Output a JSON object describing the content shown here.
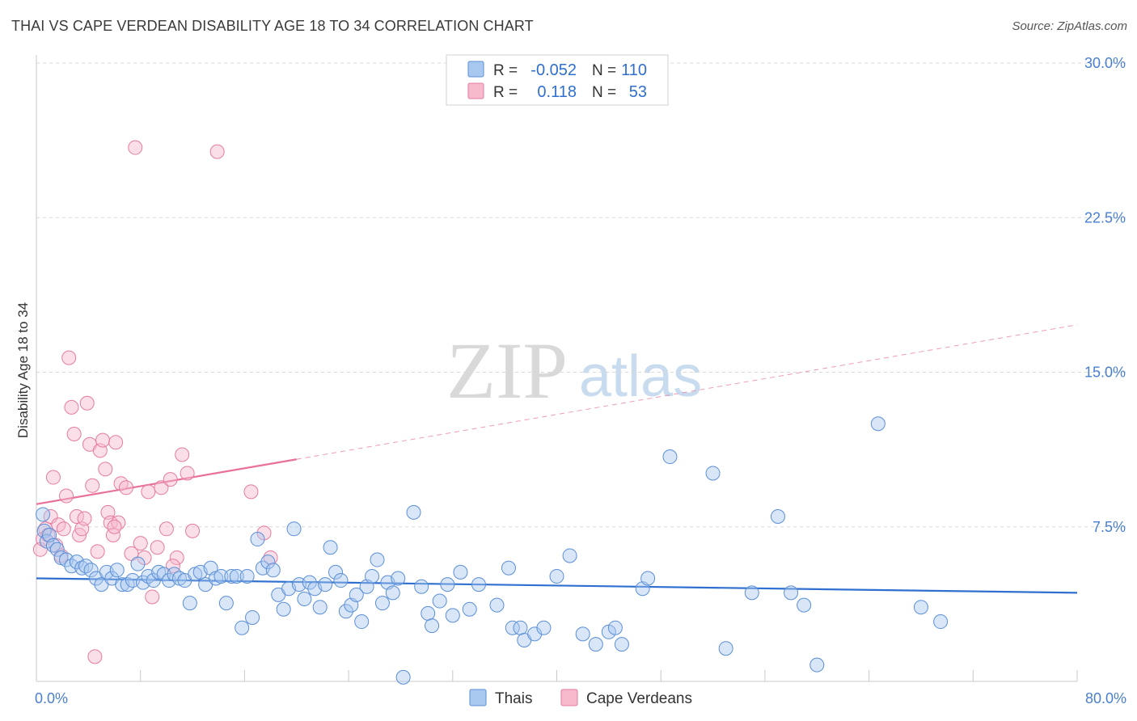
{
  "header": {
    "title": "THAI VS CAPE VERDEAN DISABILITY AGE 18 TO 34 CORRELATION CHART",
    "source": "Source: ZipAtlas.com"
  },
  "watermark": {
    "zip": "ZIP",
    "atlas": "atlas"
  },
  "colors": {
    "blue_fill": "#a9c8f0",
    "blue_stroke": "#5b8fd6",
    "blue_line": "#2f6fd0",
    "pink_fill": "#f7b9cc",
    "pink_stroke": "#e57c9f",
    "pink_line": "#e8709a",
    "grid": "#d8d8d8",
    "tick_text": "#4a7fd0"
  },
  "legend": {
    "rows": [
      {
        "r_label": "R =",
        "r_value": "-0.052",
        "n_label": "N =",
        "n_value": "110"
      },
      {
        "r_label": "R =",
        "r_value": "0.118",
        "n_label": "N =",
        "n_value": "53"
      }
    ]
  },
  "bottom_legend": {
    "items": [
      "Thais",
      "Cape Verdeans"
    ]
  },
  "chart_data": {
    "type": "scatter",
    "title": "THAI VS CAPE VERDEAN DISABILITY AGE 18 TO 34 CORRELATION CHART",
    "xlabel": "",
    "ylabel": "Disability Age 18 to 34",
    "xlim": [
      0,
      80
    ],
    "ylim": [
      0,
      30
    ],
    "x_tick_labels": [
      "0.0%",
      "80.0%"
    ],
    "y_ticks": [
      7.5,
      15.0,
      22.5,
      30.0
    ],
    "y_tick_labels": [
      "7.5%",
      "15.0%",
      "22.5%",
      "30.0%"
    ],
    "grid": true,
    "legend_position": "top-center",
    "series": [
      {
        "name": "Thais",
        "r": -0.052,
        "n": 110,
        "trend": {
          "x0": 0,
          "y0": 5.0,
          "x1": 80,
          "y1": 4.3,
          "dashed_from": null
        },
        "points": [
          [
            0.5,
            8.1
          ],
          [
            0.6,
            7.3
          ],
          [
            0.8,
            6.8
          ],
          [
            1.0,
            7.1
          ],
          [
            1.3,
            6.6
          ],
          [
            1.6,
            6.4
          ],
          [
            1.9,
            6.0
          ],
          [
            2.3,
            5.9
          ],
          [
            2.7,
            5.6
          ],
          [
            3.1,
            5.8
          ],
          [
            3.5,
            5.5
          ],
          [
            3.8,
            5.6
          ],
          [
            4.2,
            5.4
          ],
          [
            4.6,
            5.0
          ],
          [
            5.0,
            4.7
          ],
          [
            5.4,
            5.3
          ],
          [
            5.8,
            5.0
          ],
          [
            6.2,
            5.4
          ],
          [
            6.6,
            4.7
          ],
          [
            7.0,
            4.7
          ],
          [
            7.4,
            4.9
          ],
          [
            7.8,
            5.7
          ],
          [
            8.2,
            4.8
          ],
          [
            8.6,
            5.1
          ],
          [
            9.0,
            4.9
          ],
          [
            9.4,
            5.3
          ],
          [
            9.8,
            5.2
          ],
          [
            10.2,
            4.9
          ],
          [
            10.6,
            5.2
          ],
          [
            11.0,
            5.0
          ],
          [
            11.4,
            4.9
          ],
          [
            11.8,
            3.8
          ],
          [
            12.2,
            5.2
          ],
          [
            12.6,
            5.3
          ],
          [
            13.0,
            4.7
          ],
          [
            13.4,
            5.5
          ],
          [
            13.8,
            5.0
          ],
          [
            14.2,
            5.1
          ],
          [
            14.6,
            3.8
          ],
          [
            15.0,
            5.1
          ],
          [
            15.4,
            5.1
          ],
          [
            15.8,
            2.6
          ],
          [
            16.2,
            5.1
          ],
          [
            16.6,
            3.1
          ],
          [
            17.0,
            6.9
          ],
          [
            17.4,
            5.5
          ],
          [
            17.8,
            5.8
          ],
          [
            18.2,
            5.4
          ],
          [
            18.6,
            4.2
          ],
          [
            19.0,
            3.5
          ],
          [
            19.4,
            4.5
          ],
          [
            19.8,
            7.4
          ],
          [
            20.2,
            4.7
          ],
          [
            20.6,
            4.0
          ],
          [
            21.0,
            4.8
          ],
          [
            21.4,
            4.5
          ],
          [
            21.8,
            3.6
          ],
          [
            22.2,
            4.7
          ],
          [
            22.6,
            6.5
          ],
          [
            23.0,
            5.3
          ],
          [
            23.4,
            4.9
          ],
          [
            23.8,
            3.4
          ],
          [
            24.2,
            3.7
          ],
          [
            24.6,
            4.2
          ],
          [
            25.0,
            2.9
          ],
          [
            25.4,
            4.6
          ],
          [
            25.8,
            5.1
          ],
          [
            26.2,
            5.9
          ],
          [
            26.6,
            3.8
          ],
          [
            27.0,
            4.8
          ],
          [
            27.4,
            4.3
          ],
          [
            27.8,
            5.0
          ],
          [
            28.2,
            0.2
          ],
          [
            29.0,
            8.2
          ],
          [
            29.6,
            4.6
          ],
          [
            30.1,
            3.3
          ],
          [
            30.4,
            2.7
          ],
          [
            31.0,
            3.9
          ],
          [
            31.6,
            4.7
          ],
          [
            32.0,
            3.2
          ],
          [
            32.6,
            5.3
          ],
          [
            33.3,
            3.5
          ],
          [
            34.0,
            4.7
          ],
          [
            35.4,
            3.7
          ],
          [
            36.3,
            5.5
          ],
          [
            36.6,
            2.6
          ],
          [
            37.2,
            2.6
          ],
          [
            37.5,
            2.0
          ],
          [
            38.3,
            2.3
          ],
          [
            39.0,
            2.6
          ],
          [
            40.0,
            5.1
          ],
          [
            41.0,
            6.1
          ],
          [
            42.0,
            2.3
          ],
          [
            43.0,
            1.8
          ],
          [
            44.0,
            2.4
          ],
          [
            44.5,
            2.6
          ],
          [
            45.0,
            1.8
          ],
          [
            46.6,
            4.5
          ],
          [
            47.0,
            5.0
          ],
          [
            48.7,
            10.9
          ],
          [
            52.0,
            10.1
          ],
          [
            53.0,
            1.6
          ],
          [
            55.0,
            4.3
          ],
          [
            57.0,
            8.0
          ],
          [
            58.0,
            4.3
          ],
          [
            59.0,
            3.7
          ],
          [
            60.0,
            0.8
          ],
          [
            64.7,
            12.5
          ],
          [
            68.0,
            3.6
          ],
          [
            69.5,
            2.9
          ]
        ]
      },
      {
        "name": "Cape Verdeans",
        "r": 0.118,
        "n": 53,
        "trend": {
          "x0": 0,
          "y0": 8.6,
          "x1": 80,
          "y1": 17.3,
          "dashed_from": 20
        },
        "points": [
          [
            0.3,
            6.4
          ],
          [
            0.5,
            6.9
          ],
          [
            0.7,
            7.4
          ],
          [
            0.9,
            7.1
          ],
          [
            1.1,
            8.0
          ],
          [
            1.3,
            9.9
          ],
          [
            1.5,
            6.6
          ],
          [
            1.7,
            7.6
          ],
          [
            1.9,
            6.1
          ],
          [
            2.1,
            7.4
          ],
          [
            2.3,
            9.0
          ],
          [
            2.5,
            15.7
          ],
          [
            2.7,
            13.3
          ],
          [
            2.9,
            12.0
          ],
          [
            3.1,
            8.0
          ],
          [
            3.3,
            7.1
          ],
          [
            3.5,
            7.4
          ],
          [
            3.7,
            7.9
          ],
          [
            3.9,
            13.5
          ],
          [
            4.1,
            11.5
          ],
          [
            4.3,
            9.5
          ],
          [
            4.5,
            1.2
          ],
          [
            4.7,
            6.3
          ],
          [
            4.9,
            11.2
          ],
          [
            5.1,
            11.7
          ],
          [
            5.3,
            10.3
          ],
          [
            5.5,
            8.2
          ],
          [
            5.7,
            7.7
          ],
          [
            5.9,
            7.1
          ],
          [
            6.1,
            11.6
          ],
          [
            6.3,
            7.7
          ],
          [
            6.5,
            9.6
          ],
          [
            6.9,
            9.4
          ],
          [
            7.3,
            6.2
          ],
          [
            7.6,
            25.9
          ],
          [
            8.0,
            6.7
          ],
          [
            8.3,
            6.0
          ],
          [
            8.6,
            9.2
          ],
          [
            8.9,
            4.1
          ],
          [
            9.3,
            6.5
          ],
          [
            9.6,
            9.4
          ],
          [
            10.0,
            7.4
          ],
          [
            10.3,
            9.8
          ],
          [
            10.8,
            6.0
          ],
          [
            11.2,
            11.0
          ],
          [
            11.6,
            10.1
          ],
          [
            12.0,
            7.3
          ],
          [
            13.9,
            25.7
          ],
          [
            16.5,
            9.2
          ],
          [
            17.5,
            7.2
          ],
          [
            18.0,
            6.0
          ],
          [
            6.0,
            7.5
          ],
          [
            10.5,
            5.6
          ]
        ]
      }
    ]
  }
}
